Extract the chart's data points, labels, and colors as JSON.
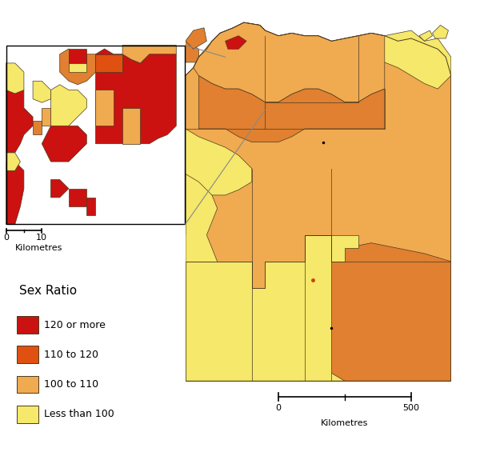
{
  "colors": {
    "red": "#CC1111",
    "orange_dark": "#E05010",
    "orange_mid": "#E08030",
    "orange_light": "#F0AA50",
    "yellow": "#F5E86A",
    "white": "#FFFFFF",
    "border": "#4A3A20"
  },
  "legend": {
    "title": "Sex Ratio",
    "items": [
      {
        "label": "120 or more",
        "color": "#CC1111"
      },
      {
        "label": "110 to 120",
        "color": "#E05010"
      },
      {
        "label": "100 to 110",
        "color": "#F0AA50"
      },
      {
        "label": "Less than 100",
        "color": "#F5E86A"
      }
    ]
  }
}
